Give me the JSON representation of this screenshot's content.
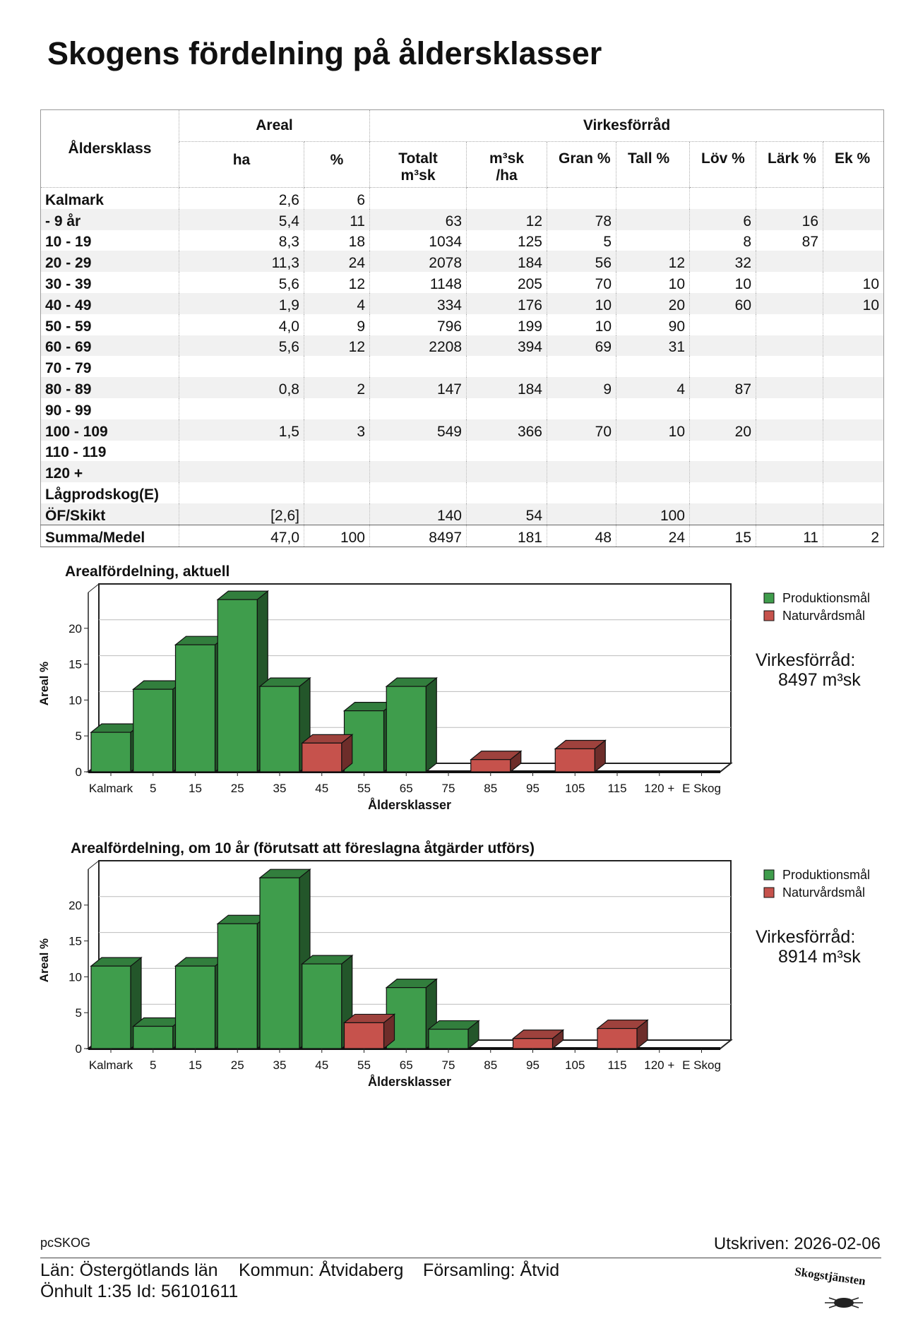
{
  "title": "Skogens fördelning på åldersklasser",
  "table": {
    "header": {
      "class": "Åldersklass",
      "groups": [
        "Areal",
        "Virkesförråd"
      ],
      "columns": [
        [
          "ha"
        ],
        [
          "%"
        ],
        [
          "Totalt",
          "m³sk"
        ],
        [
          "m³sk",
          "/ha"
        ],
        [
          "Gran %"
        ],
        [
          "Tall %"
        ],
        [
          "Löv %"
        ],
        [
          "Lärk %"
        ],
        [
          "Ek %"
        ]
      ]
    },
    "rows": [
      [
        "Kalmark",
        "2,6",
        "6",
        null,
        null,
        null,
        null,
        null,
        null,
        null
      ],
      [
        "- 9 år",
        "5,4",
        "11",
        "63",
        "12",
        "78",
        null,
        "6",
        "16",
        null
      ],
      [
        "10 - 19",
        "8,3",
        "18",
        "1034",
        "125",
        "5",
        null,
        "8",
        "87",
        null
      ],
      [
        "20 - 29",
        "11,3",
        "24",
        "2078",
        "184",
        "56",
        "12",
        "32",
        null,
        null
      ],
      [
        "30 - 39",
        "5,6",
        "12",
        "1148",
        "205",
        "70",
        "10",
        "10",
        null,
        "10"
      ],
      [
        "40 - 49",
        "1,9",
        "4",
        "334",
        "176",
        "10",
        "20",
        "60",
        null,
        "10"
      ],
      [
        "50 - 59",
        "4,0",
        "9",
        "796",
        "199",
        "10",
        "90",
        null,
        null,
        null
      ],
      [
        "60 - 69",
        "5,6",
        "12",
        "2208",
        "394",
        "69",
        "31",
        null,
        null,
        null
      ],
      [
        "70 - 79",
        null,
        null,
        null,
        null,
        null,
        null,
        null,
        null,
        null
      ],
      [
        "80 - 89",
        "0,8",
        "2",
        "147",
        "184",
        "9",
        "4",
        "87",
        null,
        null
      ],
      [
        "90 - 99",
        null,
        null,
        null,
        null,
        null,
        null,
        null,
        null,
        null
      ],
      [
        "100 - 109",
        "1,5",
        "3",
        "549",
        "366",
        "70",
        "10",
        "20",
        null,
        null
      ],
      [
        "110 - 119",
        null,
        null,
        null,
        null,
        null,
        null,
        null,
        null,
        null
      ],
      [
        "120 +",
        null,
        null,
        null,
        null,
        null,
        null,
        null,
        null,
        null
      ],
      [
        "Lågprodskog(E)",
        null,
        null,
        null,
        null,
        null,
        null,
        null,
        null,
        null
      ],
      [
        "ÖF/Skikt",
        "[2,6]",
        null,
        "140",
        "54",
        null,
        "100",
        null,
        null,
        null
      ],
      [
        "Summa/Medel",
        "47,0",
        "100",
        "8497",
        "181",
        "48",
        "24",
        "15",
        "11",
        "2"
      ]
    ]
  },
  "chart_data": [
    {
      "type": "bar",
      "title": "Arealfördelning, aktuell",
      "categories": [
        "Kalmark",
        "5",
        "15",
        "25",
        "35",
        "45",
        "55",
        "65",
        "75",
        "85",
        "95",
        "105",
        "115",
        "120 +",
        "E Skog"
      ],
      "series": [
        {
          "name": "Produktionsmål",
          "color": "#3f9d4c",
          "values": [
            5.5,
            11.5,
            17.7,
            24.0,
            11.9,
            null,
            8.5,
            11.9,
            null,
            null,
            null,
            null,
            null,
            null,
            null
          ]
        },
        {
          "name": "Naturvårdsmål",
          "color": "#c6524c",
          "values": [
            null,
            null,
            null,
            null,
            null,
            4.0,
            null,
            null,
            null,
            1.7,
            null,
            3.2,
            null,
            null,
            null
          ]
        }
      ],
      "ylim": [
        0,
        25
      ],
      "yticks": [
        0,
        5,
        10,
        15,
        20
      ],
      "ylabel": "Areal %",
      "xlabel": "Åldersklasser",
      "grid": true,
      "legend": "right",
      "annotation": {
        "label": "Virkesförråd:",
        "value": "8497 m³sk"
      }
    },
    {
      "type": "bar",
      "title": "Arealfördelning, om 10 år (förutsatt att föreslagna åtgärder utförs)",
      "categories": [
        "Kalmark",
        "5",
        "15",
        "25",
        "35",
        "45",
        "55",
        "65",
        "75",
        "85",
        "95",
        "105",
        "115",
        "120 +",
        "E Skog"
      ],
      "series": [
        {
          "name": "Produktionsmål",
          "color": "#3f9d4c",
          "values": [
            11.5,
            3.1,
            11.5,
            17.4,
            23.8,
            11.8,
            null,
            8.5,
            2.7,
            null,
            null,
            null,
            null,
            null,
            null
          ]
        },
        {
          "name": "Naturvårdsmål",
          "color": "#c6524c",
          "values": [
            null,
            null,
            null,
            null,
            null,
            null,
            3.6,
            null,
            null,
            null,
            1.4,
            null,
            2.8,
            null,
            null
          ]
        }
      ],
      "ylim": [
        0,
        25
      ],
      "yticks": [
        0,
        5,
        10,
        15,
        20
      ],
      "ylabel": "Areal %",
      "xlabel": "Åldersklasser",
      "grid": true,
      "legend": "right",
      "annotation": {
        "label": "Virkesförråd:",
        "value": "8914 m³sk"
      }
    }
  ],
  "footer": {
    "program": "pcSKOG",
    "printed": "Utskriven: 2026-02-06",
    "county": "Län: Östergötlands län",
    "municipality": "Kommun: Åtvidaberg",
    "parish": "Församling: Åtvid",
    "property": "Önhult 1:35 Id: 56101611",
    "logo": "Skogstjänsten"
  }
}
